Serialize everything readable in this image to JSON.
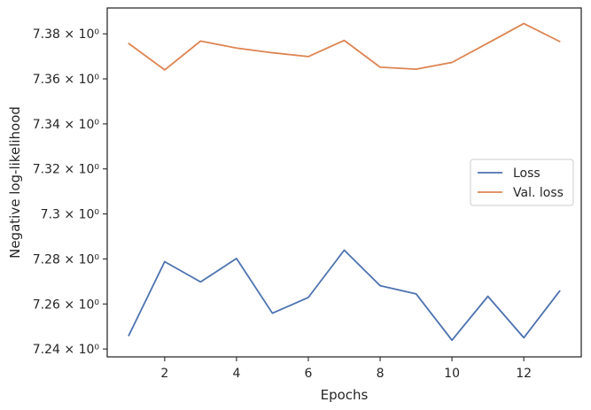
{
  "chart_data": {
    "type": "line",
    "title": "",
    "xlabel": "Epochs",
    "ylabel": "Negative log-likelihood",
    "xlim": [
      0.4,
      13.6
    ],
    "ylim": [
      7.2365,
      7.3915
    ],
    "x_ticks": [
      2,
      4,
      6,
      8,
      10,
      12
    ],
    "y_ticks": [
      {
        "value": 7.24,
        "label": "7.24 × 10⁰"
      },
      {
        "value": 7.26,
        "label": "7.26 × 10⁰"
      },
      {
        "value": 7.28,
        "label": "7.28 × 10⁰"
      },
      {
        "value": 7.3,
        "label": "7.3 × 10⁰"
      },
      {
        "value": 7.32,
        "label": "7.32 × 10⁰"
      },
      {
        "value": 7.34,
        "label": "7.34 × 10⁰"
      },
      {
        "value": 7.36,
        "label": "7.36 × 10⁰"
      },
      {
        "value": 7.38,
        "label": "7.38 × 10⁰"
      }
    ],
    "grid": false,
    "legend_position": "center-right",
    "x": [
      1,
      2,
      3,
      4,
      5,
      6,
      7,
      8,
      9,
      10,
      11,
      12,
      13
    ],
    "series": [
      {
        "name": "Loss",
        "color": "#4c72b0",
        "values": [
          7.246,
          7.2788,
          7.2698,
          7.2802,
          7.2559,
          7.2629,
          7.2839,
          7.2681,
          7.2645,
          7.2439,
          7.2634,
          7.245,
          7.2658
        ]
      },
      {
        "name": "Val. loss",
        "color": "#dd8452",
        "values": [
          7.3757,
          7.364,
          7.3768,
          7.3737,
          7.3716,
          7.3699,
          7.3771,
          7.3652,
          7.3643,
          7.3673,
          7.3759,
          7.3846,
          7.3766
        ]
      }
    ]
  }
}
